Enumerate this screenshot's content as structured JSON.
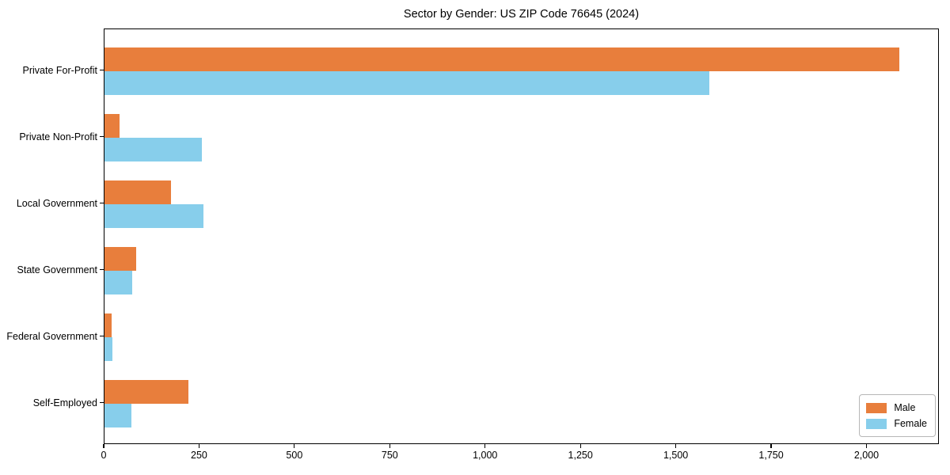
{
  "chart_data": {
    "type": "bar",
    "orientation": "horizontal",
    "grouped": true,
    "title": "Sector by Gender: US ZIP Code 76645 (2024)",
    "categories": [
      "Private For-Profit",
      "Private Non-Profit",
      "Local Government",
      "State Government",
      "Federal Government",
      "Self-Employed"
    ],
    "series": [
      {
        "name": "Male",
        "color": "#e87e3c",
        "values": [
          2085,
          40,
          175,
          82,
          18,
          220
        ]
      },
      {
        "name": "Female",
        "color": "#87ceeb",
        "values": [
          1585,
          255,
          260,
          72,
          20,
          70
        ]
      }
    ],
    "xlabel": "",
    "ylabel": "",
    "xlim": [
      0,
      2190
    ],
    "xticks": [
      0,
      250,
      500,
      750,
      1000,
      1250,
      1500,
      1750,
      2000
    ],
    "xtick_labels": [
      "0",
      "250",
      "500",
      "750",
      "1,000",
      "1,250",
      "1,500",
      "1,750",
      "2,000"
    ],
    "grid": false,
    "legend": {
      "position": "lower right",
      "entries": [
        "Male",
        "Female"
      ]
    },
    "colors": {
      "frame": "#000000",
      "background": "#ffffff",
      "legend_border": "#b7b7b7"
    }
  }
}
